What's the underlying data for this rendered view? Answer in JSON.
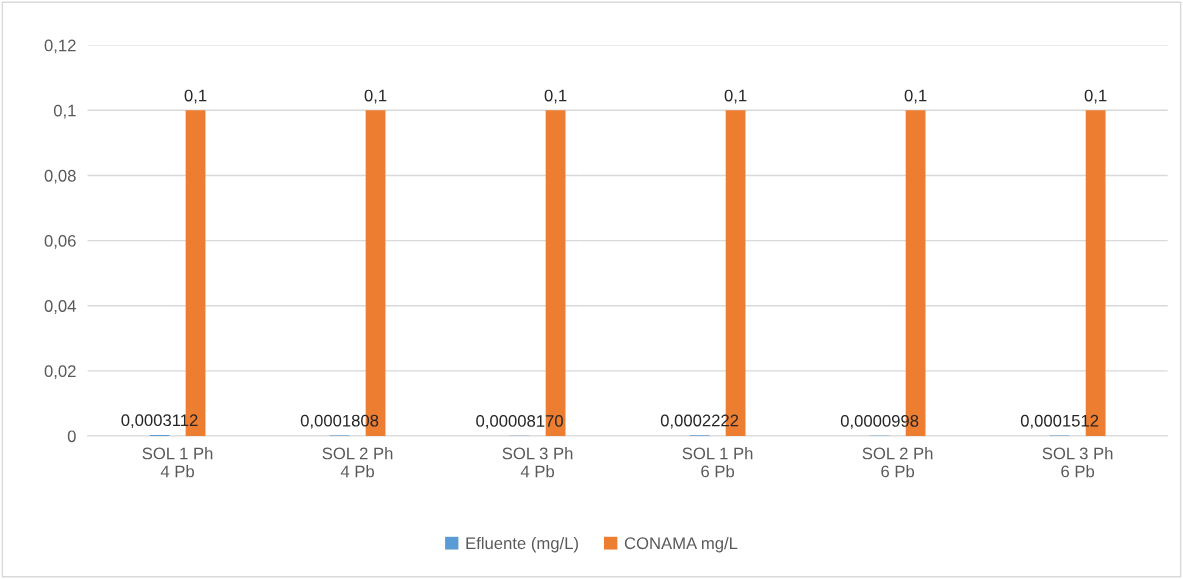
{
  "chart_data": {
    "type": "bar",
    "categories": [
      "SOL 1 Ph\n4 Pb",
      "SOL 2 Ph\n4 Pb",
      "SOL 3 Ph\n4 Pb",
      "SOL 1 Ph\n6 Pb",
      "SOL 2 Ph\n6 Pb",
      "SOL 3 Ph\n6 Pb"
    ],
    "series": [
      {
        "name": "Efluente (mg/L)",
        "color": "#5b9bd5",
        "values": [
          0.0003112,
          0.0001808,
          8.17e-05,
          0.0002222,
          9.98e-05,
          0.0001512
        ],
        "value_labels": [
          "0,0003112",
          "0,0001808",
          "0,00008170",
          "0,0002222",
          "0,0000998",
          "0,0001512"
        ]
      },
      {
        "name": "CONAMA mg/L",
        "color": "#ed7d31",
        "values": [
          0.1,
          0.1,
          0.1,
          0.1,
          0.1,
          0.1
        ],
        "value_labels": [
          "0,1",
          "0,1",
          "0,1",
          "0,1",
          "0,1",
          "0,1"
        ]
      }
    ],
    "ylim": [
      0,
      0.12
    ],
    "yticks": [
      0,
      {
        "value": 0.02,
        "label": "0,02"
      },
      {
        "value": 0.04,
        "label": "0,04"
      },
      {
        "value": 0.06,
        "label": "0,06"
      },
      {
        "value": 0.08,
        "label": "0,08"
      },
      {
        "value": 0.1,
        "label": "0,1"
      },
      {
        "value": 0.12,
        "label": "0,12"
      }
    ],
    "grid": "y",
    "legend": "bottom"
  }
}
